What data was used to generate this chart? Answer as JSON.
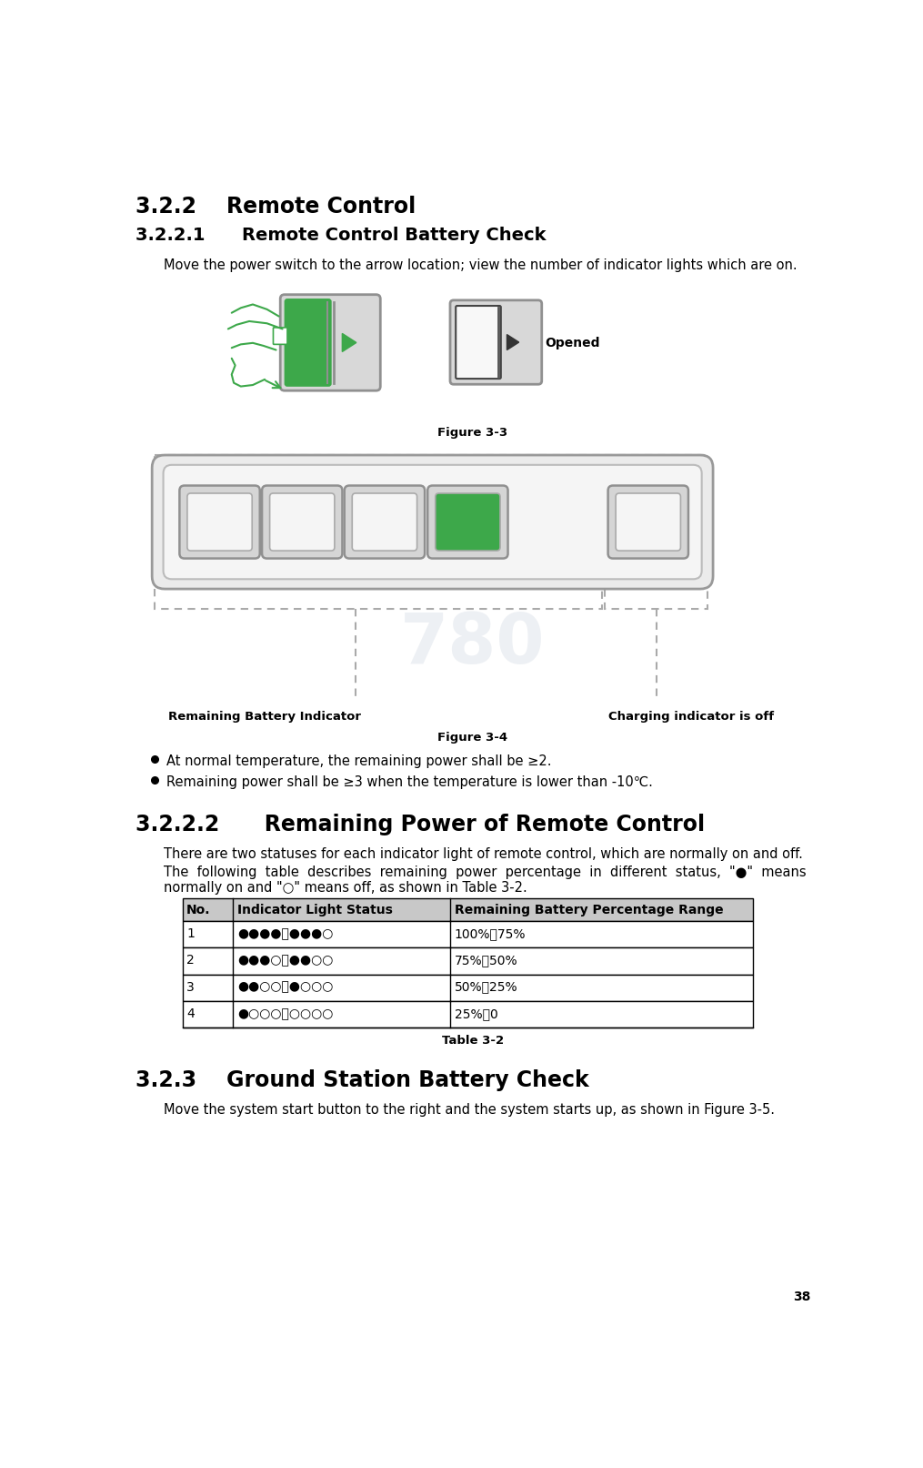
{
  "page_number": "38",
  "bg_color": "#ffffff",
  "title_322": "3.2.2    Remote Control",
  "title_3221": "3.2.2.1      Remote Control Battery Check",
  "para_3221": "Move the power switch to the arrow location; view the number of indicator lights which are on.",
  "fig3_caption": "Figure 3-3",
  "fig4_caption": "Figure 3-4",
  "bullet1": "At normal temperature, the remaining power shall be ≥2.",
  "bullet2": "Remaining power shall be ≥3 when the temperature is lower than -10℃.",
  "title_3222": "3.2.2.2      Remaining Power of Remote Control",
  "para_3222_1": "There are two statuses for each indicator light of remote control, which are normally on and off.",
  "para_3222_2a": "The  following  table  describes  remaining  power  percentage  in  different  status,  \"●\"  means",
  "para_3222_2b": "normally on and \"○\" means off, as shown in Table 3-2.",
  "table_header": [
    "No.",
    "Indicator Light Status",
    "Remaining Battery Percentage Range"
  ],
  "table_rows": [
    [
      "1",
      "●●●●～●●●○",
      "100%～75%"
    ],
    [
      "2",
      "●●●○～●●○○",
      "75%～50%"
    ],
    [
      "3",
      "●●○○～●○○○",
      "50%～25%"
    ],
    [
      "4",
      "●○○○～○○○○",
      "25%～0"
    ]
  ],
  "table_caption": "Table 3-2",
  "title_323": "3.2.3    Ground Station Battery Check",
  "para_323": "Move the system start button to the right and the system starts up, as shown in Figure 3-5.",
  "green_color": "#3da84a",
  "gray_color": "#aaaaaa",
  "dark_gray": "#888888",
  "light_gray": "#cccccc",
  "table_header_bg": "#c8c8c8",
  "table_border": "#000000",
  "dashed_border": "#aaaaaa",
  "text_color": "#000000",
  "font_size_h1": 17,
  "font_size_h2": 14,
  "font_size_body": 10.5,
  "font_size_caption": 9.5,
  "watermark_color": "#cdd5e0"
}
